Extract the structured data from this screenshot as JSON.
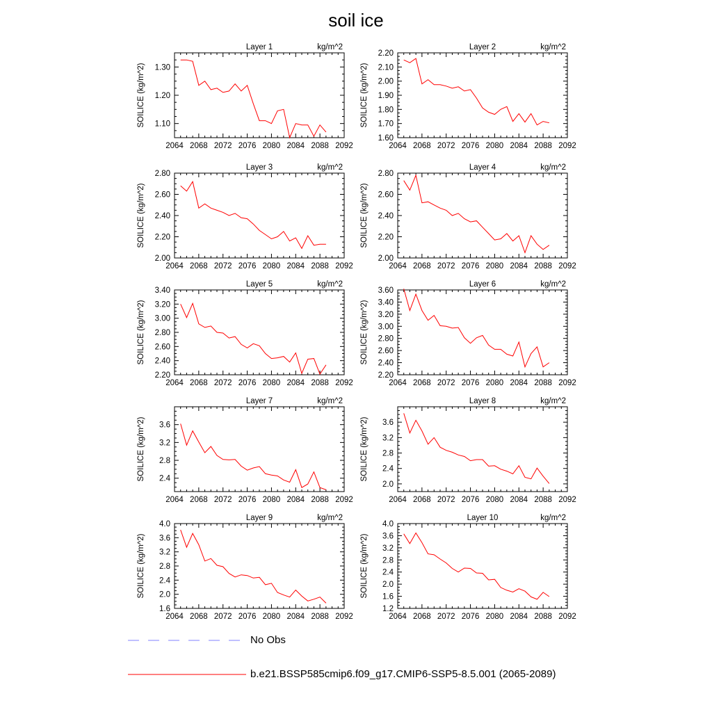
{
  "title": "soil ice",
  "units_label": "kg/m^2",
  "ylabel": "SOILICE  (kg/m^2)",
  "line_color": "#ff0000",
  "obs_color": "#8080ff",
  "legend": [
    {
      "label": "No Obs",
      "style": "dashed",
      "color": "#8080ff"
    },
    {
      "label": "b.e21.BSSP585cmip6.f09_g17.CMIP6-SSP5-8.5.001 (2065-2089)",
      "style": "solid",
      "color": "#ff0000"
    }
  ],
  "chart_data": [
    {
      "type": "line",
      "title": "Layer 1",
      "xlim": [
        2064,
        2092
      ],
      "xticks": [
        2064,
        2068,
        2072,
        2076,
        2080,
        2084,
        2088,
        2092
      ],
      "ylim": [
        1.05,
        1.35
      ],
      "yticks": [
        1.1,
        1.2,
        1.3
      ],
      "ytick_labels": [
        "1.10",
        "1.20",
        "1.30"
      ],
      "x": [
        2065,
        2066,
        2067,
        2068,
        2069,
        2070,
        2071,
        2072,
        2073,
        2074,
        2075,
        2076,
        2077,
        2078,
        2079,
        2080,
        2081,
        2082,
        2083,
        2084,
        2085,
        2086,
        2087,
        2088,
        2089
      ],
      "values": [
        1.325,
        1.325,
        1.32,
        1.235,
        1.25,
        1.22,
        1.225,
        1.21,
        1.215,
        1.24,
        1.215,
        1.235,
        1.17,
        1.11,
        1.11,
        1.1,
        1.145,
        1.15,
        1.05,
        1.1,
        1.095,
        1.095,
        1.055,
        1.095,
        1.07
      ]
    },
    {
      "type": "line",
      "title": "Layer 2",
      "xlim": [
        2064,
        2092
      ],
      "xticks": [
        2064,
        2068,
        2072,
        2076,
        2080,
        2084,
        2088,
        2092
      ],
      "ylim": [
        1.6,
        2.2
      ],
      "yticks": [
        1.6,
        1.7,
        1.8,
        1.9,
        2.0,
        2.1,
        2.2
      ],
      "ytick_labels": [
        "1.60",
        "1.70",
        "1.80",
        "1.90",
        "2.00",
        "2.10",
        "2.20"
      ],
      "x": [
        2065,
        2066,
        2067,
        2068,
        2069,
        2070,
        2071,
        2072,
        2073,
        2074,
        2075,
        2076,
        2077,
        2078,
        2079,
        2080,
        2081,
        2082,
        2083,
        2084,
        2085,
        2086,
        2087,
        2088,
        2089
      ],
      "values": [
        2.15,
        2.13,
        2.16,
        1.98,
        2.01,
        1.975,
        1.975,
        1.965,
        1.95,
        1.96,
        1.93,
        1.94,
        1.88,
        1.81,
        1.78,
        1.765,
        1.8,
        1.82,
        1.715,
        1.77,
        1.71,
        1.77,
        1.69,
        1.715,
        1.705
      ]
    },
    {
      "type": "line",
      "title": "Layer 3",
      "xlim": [
        2064,
        2092
      ],
      "xticks": [
        2064,
        2068,
        2072,
        2076,
        2080,
        2084,
        2088,
        2092
      ],
      "ylim": [
        2.0,
        2.8
      ],
      "yticks": [
        2.0,
        2.2,
        2.4,
        2.6,
        2.8
      ],
      "ytick_labels": [
        "2.00",
        "2.20",
        "2.40",
        "2.60",
        "2.80"
      ],
      "x": [
        2065,
        2066,
        2067,
        2068,
        2069,
        2070,
        2071,
        2072,
        2073,
        2074,
        2075,
        2076,
        2077,
        2078,
        2079,
        2080,
        2081,
        2082,
        2083,
        2084,
        2085,
        2086,
        2087,
        2088,
        2089
      ],
      "values": [
        2.68,
        2.63,
        2.72,
        2.47,
        2.51,
        2.47,
        2.45,
        2.43,
        2.4,
        2.42,
        2.38,
        2.37,
        2.32,
        2.26,
        2.22,
        2.18,
        2.2,
        2.25,
        2.16,
        2.19,
        2.09,
        2.21,
        2.12,
        2.13,
        2.13
      ]
    },
    {
      "type": "line",
      "title": "Layer 4",
      "xlim": [
        2064,
        2092
      ],
      "xticks": [
        2064,
        2068,
        2072,
        2076,
        2080,
        2084,
        2088,
        2092
      ],
      "ylim": [
        2.0,
        2.8
      ],
      "yticks": [
        2.0,
        2.2,
        2.4,
        2.6,
        2.8
      ],
      "ytick_labels": [
        "2.00",
        "2.20",
        "2.40",
        "2.60",
        "2.80"
      ],
      "x": [
        2065,
        2066,
        2067,
        2068,
        2069,
        2070,
        2071,
        2072,
        2073,
        2074,
        2075,
        2076,
        2077,
        2078,
        2079,
        2080,
        2081,
        2082,
        2083,
        2084,
        2085,
        2086,
        2087,
        2088,
        2089
      ],
      "values": [
        2.73,
        2.64,
        2.78,
        2.52,
        2.53,
        2.5,
        2.47,
        2.45,
        2.4,
        2.42,
        2.37,
        2.34,
        2.35,
        2.29,
        2.23,
        2.17,
        2.18,
        2.23,
        2.16,
        2.21,
        2.05,
        2.21,
        2.13,
        2.08,
        2.12
      ]
    },
    {
      "type": "line",
      "title": "Layer 5",
      "xlim": [
        2064,
        2092
      ],
      "xticks": [
        2064,
        2068,
        2072,
        2076,
        2080,
        2084,
        2088,
        2092
      ],
      "ylim": [
        2.2,
        3.4
      ],
      "yticks": [
        2.2,
        2.4,
        2.6,
        2.8,
        3.0,
        3.2,
        3.4
      ],
      "ytick_labels": [
        "2.20",
        "2.40",
        "2.60",
        "2.80",
        "3.00",
        "3.20",
        "3.40"
      ],
      "x": [
        2065,
        2066,
        2067,
        2068,
        2069,
        2070,
        2071,
        2072,
        2073,
        2074,
        2075,
        2076,
        2077,
        2078,
        2079,
        2080,
        2081,
        2082,
        2083,
        2084,
        2085,
        2086,
        2087,
        2088,
        2089
      ],
      "values": [
        3.2,
        3.01,
        3.21,
        2.92,
        2.87,
        2.89,
        2.8,
        2.79,
        2.72,
        2.74,
        2.63,
        2.58,
        2.64,
        2.61,
        2.5,
        2.43,
        2.44,
        2.46,
        2.38,
        2.51,
        2.22,
        2.42,
        2.43,
        2.21,
        2.34
      ]
    },
    {
      "type": "line",
      "title": "Layer 6",
      "xlim": [
        2064,
        2092
      ],
      "xticks": [
        2064,
        2068,
        2072,
        2076,
        2080,
        2084,
        2088,
        2092
      ],
      "ylim": [
        2.2,
        3.6
      ],
      "yticks": [
        2.2,
        2.4,
        2.6,
        2.8,
        3.0,
        3.2,
        3.4,
        3.6
      ],
      "ytick_labels": [
        "2.20",
        "2.40",
        "2.60",
        "2.80",
        "3.00",
        "3.20",
        "3.40",
        "3.60"
      ],
      "x": [
        2065,
        2066,
        2067,
        2068,
        2069,
        2070,
        2071,
        2072,
        2073,
        2074,
        2075,
        2076,
        2077,
        2078,
        2079,
        2080,
        2081,
        2082,
        2083,
        2084,
        2085,
        2086,
        2087,
        2088,
        2089
      ],
      "values": [
        3.62,
        3.26,
        3.53,
        3.26,
        3.1,
        3.18,
        3.01,
        3.0,
        2.97,
        2.98,
        2.81,
        2.72,
        2.81,
        2.85,
        2.69,
        2.62,
        2.62,
        2.54,
        2.51,
        2.74,
        2.33,
        2.55,
        2.66,
        2.33,
        2.4
      ]
    },
    {
      "type": "line",
      "title": "Layer 7",
      "xlim": [
        2064,
        2092
      ],
      "xticks": [
        2064,
        2068,
        2072,
        2076,
        2080,
        2084,
        2088,
        2092
      ],
      "ylim": [
        2.1,
        4.0
      ],
      "yticks": [
        2.4,
        2.8,
        3.2,
        3.6
      ],
      "ytick_labels": [
        "2.4",
        "2.8",
        "3.2",
        "3.6"
      ],
      "x": [
        2065,
        2066,
        2067,
        2068,
        2069,
        2070,
        2071,
        2072,
        2073,
        2074,
        2075,
        2076,
        2077,
        2078,
        2079,
        2080,
        2081,
        2082,
        2083,
        2084,
        2085,
        2086,
        2087,
        2088,
        2089
      ],
      "values": [
        3.62,
        3.14,
        3.46,
        3.21,
        2.97,
        3.11,
        2.91,
        2.82,
        2.81,
        2.82,
        2.67,
        2.58,
        2.63,
        2.66,
        2.5,
        2.47,
        2.45,
        2.36,
        2.31,
        2.59,
        2.19,
        2.27,
        2.54,
        2.19,
        2.14
      ]
    },
    {
      "type": "line",
      "title": "Layer 8",
      "xlim": [
        2064,
        2092
      ],
      "xticks": [
        2064,
        2068,
        2072,
        2076,
        2080,
        2084,
        2088,
        2092
      ],
      "ylim": [
        1.8,
        4.0
      ],
      "yticks": [
        2.0,
        2.4,
        2.8,
        3.2,
        3.6
      ],
      "ytick_labels": [
        "2.0",
        "2.4",
        "2.8",
        "3.2",
        "3.6"
      ],
      "x": [
        2065,
        2066,
        2067,
        2068,
        2069,
        2070,
        2071,
        2072,
        2073,
        2074,
        2075,
        2076,
        2077,
        2078,
        2079,
        2080,
        2081,
        2082,
        2083,
        2084,
        2085,
        2086,
        2087,
        2088,
        2089
      ],
      "values": [
        3.83,
        3.32,
        3.65,
        3.37,
        3.03,
        3.2,
        2.95,
        2.87,
        2.82,
        2.75,
        2.71,
        2.6,
        2.63,
        2.63,
        2.46,
        2.47,
        2.38,
        2.33,
        2.26,
        2.47,
        2.17,
        2.13,
        2.41,
        2.2,
        2.01
      ]
    },
    {
      "type": "line",
      "title": "Layer 9",
      "xlim": [
        2064,
        2092
      ],
      "xticks": [
        2064,
        2068,
        2072,
        2076,
        2080,
        2084,
        2088,
        2092
      ],
      "ylim": [
        1.6,
        4.0
      ],
      "yticks": [
        1.6,
        2.0,
        2.4,
        2.8,
        3.2,
        3.6,
        4.0
      ],
      "ytick_labels": [
        "1.6",
        "2.0",
        "2.4",
        "2.8",
        "3.2",
        "3.6",
        "4.0"
      ],
      "x": [
        2065,
        2066,
        2067,
        2068,
        2069,
        2070,
        2071,
        2072,
        2073,
        2074,
        2075,
        2076,
        2077,
        2078,
        2079,
        2080,
        2081,
        2082,
        2083,
        2084,
        2085,
        2086,
        2087,
        2088,
        2089
      ],
      "values": [
        3.82,
        3.33,
        3.72,
        3.4,
        2.94,
        3.01,
        2.82,
        2.78,
        2.59,
        2.49,
        2.55,
        2.53,
        2.46,
        2.48,
        2.27,
        2.31,
        2.05,
        1.98,
        1.92,
        2.12,
        1.95,
        1.81,
        1.86,
        1.92,
        1.75
      ]
    },
    {
      "type": "line",
      "title": "Layer 10",
      "xlim": [
        2064,
        2092
      ],
      "xticks": [
        2064,
        2068,
        2072,
        2076,
        2080,
        2084,
        2088,
        2092
      ],
      "ylim": [
        1.2,
        4.0
      ],
      "yticks": [
        1.2,
        1.6,
        2.0,
        2.4,
        2.8,
        3.2,
        3.6,
        4.0
      ],
      "ytick_labels": [
        "1.2",
        "1.6",
        "2.0",
        "2.4",
        "2.8",
        "3.2",
        "3.6",
        "4.0"
      ],
      "x": [
        2065,
        2066,
        2067,
        2068,
        2069,
        2070,
        2071,
        2072,
        2073,
        2074,
        2075,
        2076,
        2077,
        2078,
        2079,
        2080,
        2081,
        2082,
        2083,
        2084,
        2085,
        2086,
        2087,
        2088,
        2089
      ],
      "values": [
        3.66,
        3.34,
        3.69,
        3.37,
        3.0,
        2.97,
        2.83,
        2.7,
        2.52,
        2.4,
        2.53,
        2.52,
        2.37,
        2.36,
        2.14,
        2.16,
        1.89,
        1.8,
        1.74,
        1.85,
        1.77,
        1.58,
        1.5,
        1.73,
        1.59
      ]
    }
  ]
}
